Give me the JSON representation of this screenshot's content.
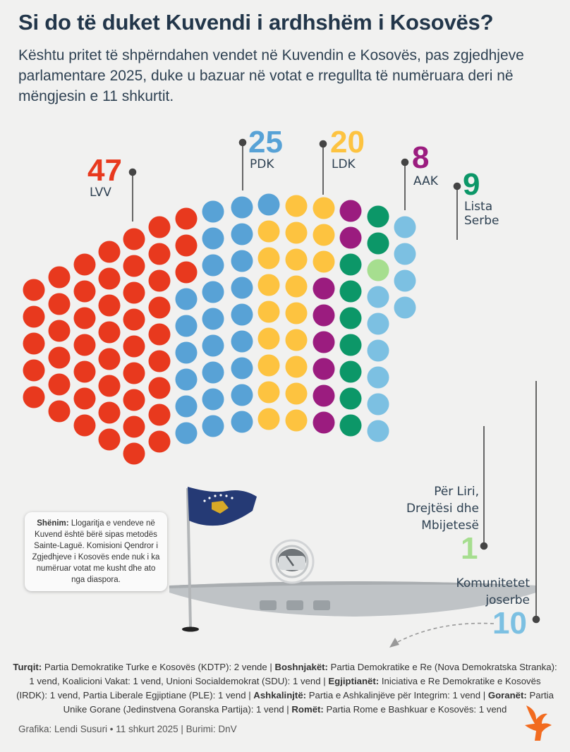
{
  "title": "Si do të duket Kuvendi i ardhshëm i Kosovës?",
  "subtitle": "Kështu pritet të shpërndahen vendet në Kuvendin e Kosovës, pas zgjedhjeve parlamentare 2025, duke u bazuar në votat e rregullta të numëruara deri në mëngjesin e 11 shkurtit.",
  "chart_data": {
    "type": "parliament",
    "total_seats": 120,
    "series": [
      {
        "name": "LVV",
        "value": 47,
        "color": "#e8391e"
      },
      {
        "name": "PDK",
        "value": 25,
        "color": "#58a2d6"
      },
      {
        "name": "LDK",
        "value": 20,
        "color": "#fdc340"
      },
      {
        "name": "AAK",
        "value": 8,
        "color": "#9b1c7f"
      },
      {
        "name": "Lista Serbe",
        "value": 9,
        "color": "#0c9768"
      },
      {
        "name": "Për Liri, Drejtësi dhe Mbijetesë",
        "value": 1,
        "color": "#a6de8f"
      },
      {
        "name": "Komunitetet joserbe",
        "value": 10,
        "color": "#7cc0e2"
      }
    ]
  },
  "labels": {
    "lvv_num": "47",
    "lvv_name": "LVV",
    "pdk_num": "25",
    "pdk_name": "PDK",
    "ldk_num": "20",
    "ldk_name": "LDK",
    "aak_num": "8",
    "aak_name": "AAK",
    "ls_num": "9",
    "ls_name1": "Lista",
    "ls_name2": "Serbe",
    "pld_num": "1",
    "pld_name1": "Për Liri,",
    "pld_name2": "Drejtësi dhe",
    "pld_name3": "Mbijetesë",
    "kj_num": "10",
    "kj_name1": "Komunitetet",
    "kj_name2": "joserbe"
  },
  "note": {
    "bold": "Shënim:",
    "text": " Llogaritja e vendeve në Kuvend është bërë sipas metodës Sainte-Laguë. Komisioni Qendror i Zgjedhjeve i Kosovës ende nuk i ka numëruar votat me kusht dhe ato nga diaspora."
  },
  "bottom_note": {
    "s1_bold": "Turqit:",
    "s1_text": " Partia Demokratike Turke e Kosovës (KDTP): 2 vende | ",
    "s2_bold": "Boshnjakët:",
    "s2_text": " Partia Demokratike e Re (Nova Demokratska Stranka): 1 vend, Koalicioni Vakat: 1 vend, Unioni Socialdemokrat (SDU): 1 vend | ",
    "s3_bold": "Egjiptianët:",
    "s3_text": " Iniciativa e Re Demokratike e Kosovës (IRDK): 1 vend, Partia Liberale Egjiptiane (PLE): 1 vend | ",
    "s4_bold": "Ashkalinjtë:",
    "s4_text": " Partia e Ashkalinjëve për Integrim: 1 vend | ",
    "s5_bold": "Goranët:",
    "s5_text": " Partia Unike Gorane (Jedinstvena Goranska Partija): 1 vend | ",
    "s6_bold": "Romët:",
    "s6_text": " Partia Rome e Bashkuar e Kosovës: 1 vend"
  },
  "credit": "Grafika: Lendi Susuri • 11 shkurt 2025 | Burimi: DnV",
  "colors": {
    "title": "#22364a",
    "flag_blue": "#253a75",
    "flag_gold": "#d7a927"
  },
  "icons": {
    "logo": "rfe-flame-logo",
    "flag": "kosovo-flag",
    "mic": "microphone-icon"
  }
}
